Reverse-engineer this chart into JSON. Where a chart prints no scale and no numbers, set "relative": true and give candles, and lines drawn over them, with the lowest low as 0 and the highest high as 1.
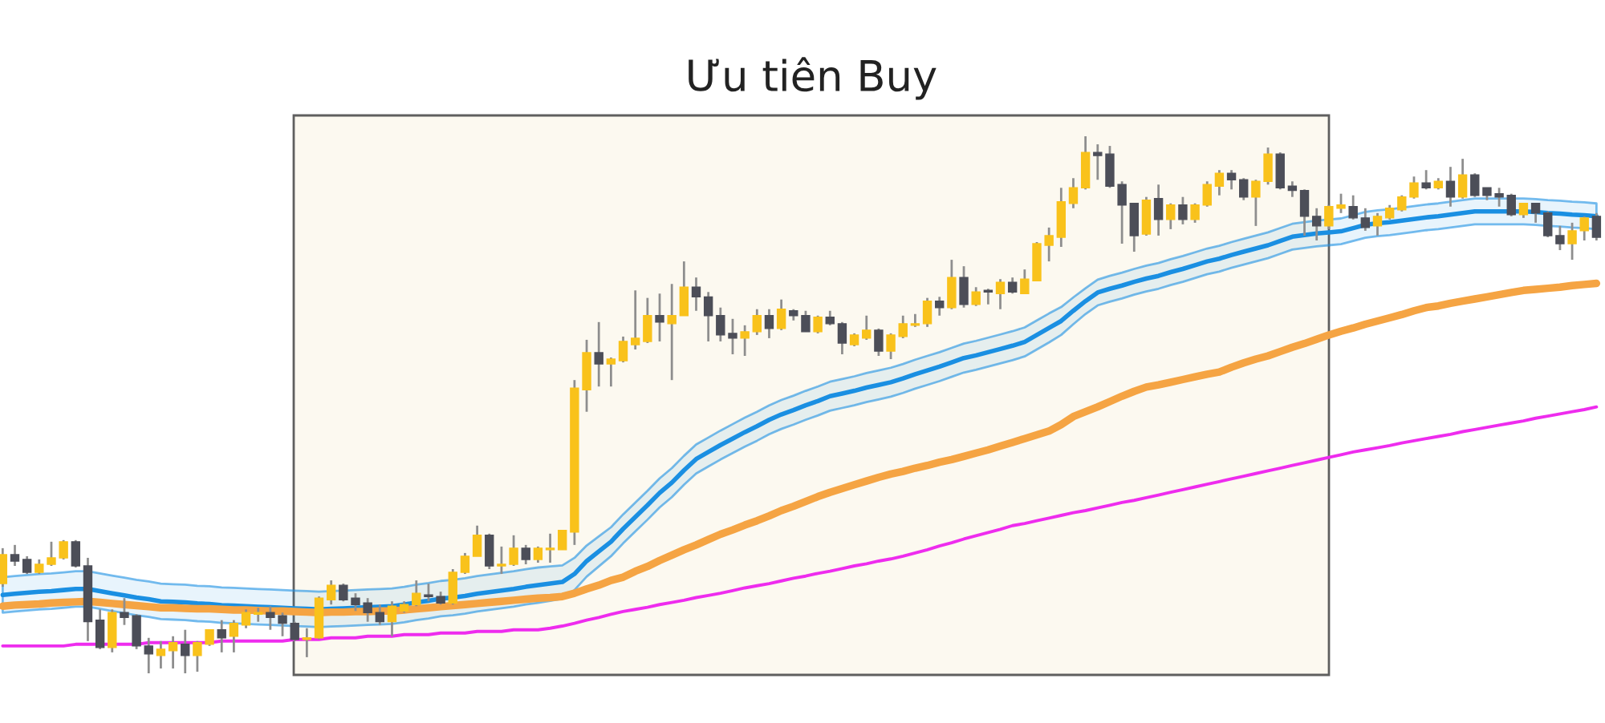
{
  "chart_data": {
    "type": "candlestick",
    "relative": true,
    "title": "Ưu tiên Buy",
    "categories": [
      null,
      null,
      null,
      null,
      null,
      null,
      null,
      null,
      null,
      null,
      null,
      null,
      null,
      null,
      null,
      null,
      null,
      null,
      null,
      null,
      null,
      null,
      null,
      null,
      null,
      null,
      null,
      null,
      null,
      null,
      null,
      null,
      null,
      null,
      null,
      null,
      null,
      null,
      null,
      null,
      null,
      null,
      null,
      null,
      null,
      null,
      null,
      null,
      null,
      null,
      null,
      null,
      null,
      null,
      null,
      null,
      null,
      null,
      null,
      null,
      null,
      null,
      null,
      null,
      null,
      null,
      null,
      null,
      null,
      null,
      null,
      null,
      null,
      null,
      null,
      null,
      null,
      null,
      null,
      null,
      null,
      null,
      null,
      null,
      null,
      null,
      null,
      null,
      null,
      null,
      null,
      null,
      null,
      null,
      null,
      null,
      null,
      null,
      null,
      null,
      null,
      null,
      null,
      null,
      null,
      null,
      null,
      null,
      null,
      null,
      null,
      null,
      null,
      null,
      null,
      null,
      null,
      null,
      null,
      null,
      null,
      null,
      null,
      null,
      null,
      null,
      null,
      null,
      null,
      null,
      null,
      null
    ],
    "ohlc": [
      [
        0.167,
        0.233,
        0.161,
        0.221
      ],
      [
        0.221,
        0.239,
        0.2,
        0.209
      ],
      [
        0.212,
        0.218,
        0.185,
        0.188
      ],
      [
        0.188,
        0.212,
        0.185,
        0.203
      ],
      [
        0.203,
        0.245,
        0.2,
        0.215
      ],
      [
        0.215,
        0.248,
        0.212,
        0.245
      ],
      [
        0.245,
        0.248,
        0.197,
        0.2
      ],
      [
        0.2,
        0.215,
        0.06,
        0.096
      ],
      [
        0.099,
        0.119,
        0.045,
        0.048
      ],
      [
        0.048,
        0.119,
        0.039,
        0.113
      ],
      [
        0.113,
        0.14,
        0.09,
        0.104
      ],
      [
        0.107,
        0.11,
        0.045,
        0.051
      ],
      [
        0.051,
        0.066,
        0,
        0.036
      ],
      [
        0.033,
        0.06,
        0.009,
        0.045
      ],
      [
        0.042,
        0.069,
        0.009,
        0.057
      ],
      [
        0.054,
        0.081,
        0,
        0.033
      ],
      [
        0.033,
        0.06,
        0.003,
        0.057
      ],
      [
        0.054,
        0.081,
        0.051,
        0.081
      ],
      [
        0.081,
        0.099,
        0.039,
        0.066
      ],
      [
        0.069,
        0.099,
        0.039,
        0.093
      ],
      [
        0.09,
        0.119,
        0.084,
        0.113
      ],
      [
        0.11,
        0.122,
        0.096,
        0.113
      ],
      [
        0.113,
        0.125,
        0.081,
        0.104
      ],
      [
        0.107,
        0.113,
        0.069,
        0.093
      ],
      [
        0.093,
        0.096,
        0.06,
        0.063
      ],
      [
        0.063,
        0.084,
        0.03,
        0.066
      ],
      [
        0.066,
        0.143,
        0.063,
        0.14
      ],
      [
        0.137,
        0.173,
        0.128,
        0.164
      ],
      [
        0.164,
        0.167,
        0.134,
        0.137
      ],
      [
        0.14,
        0.149,
        0.116,
        0.128
      ],
      [
        0.131,
        0.14,
        0.096,
        0.113
      ],
      [
        0.113,
        0.128,
        0.09,
        0.096
      ],
      [
        0.096,
        0.134,
        0.069,
        0.125
      ],
      [
        0.116,
        0.134,
        0.113,
        0.128
      ],
      [
        0.128,
        0.173,
        0.125,
        0.149
      ],
      [
        0.146,
        0.167,
        0.134,
        0.143
      ],
      [
        0.143,
        0.152,
        0.128,
        0.131
      ],
      [
        0.131,
        0.194,
        0.128,
        0.188
      ],
      [
        0.188,
        0.224,
        0.185,
        0.218
      ],
      [
        0.218,
        0.275,
        0.218,
        0.257
      ],
      [
        0.257,
        0.26,
        0.194,
        0.2
      ],
      [
        0.2,
        0.236,
        0.185,
        0.203
      ],
      [
        0.203,
        0.257,
        0.2,
        0.233
      ],
      [
        0.233,
        0.239,
        0.203,
        0.212
      ],
      [
        0.212,
        0.236,
        0.206,
        0.233
      ],
      [
        0.23,
        0.26,
        0.206,
        0.233
      ],
      [
        0.23,
        0.266,
        0.23,
        0.266
      ],
      [
        0.263,
        0.546,
        0.239,
        0.531
      ],
      [
        0.528,
        0.621,
        0.487,
        0.597
      ],
      [
        0.597,
        0.654,
        0.534,
        0.576
      ],
      [
        0.576,
        0.588,
        0.534,
        0.585
      ],
      [
        0.582,
        0.627,
        0.579,
        0.618
      ],
      [
        0.612,
        0.713,
        0.603,
        0.624
      ],
      [
        0.618,
        0.699,
        0.615,
        0.666
      ],
      [
        0.666,
        0.707,
        0.618,
        0.654
      ],
      [
        0.651,
        0.725,
        0.546,
        0.666
      ],
      [
        0.666,
        0.767,
        0.666,
        0.719
      ],
      [
        0.719,
        0.737,
        0.675,
        0.701
      ],
      [
        0.701,
        0.71,
        0.618,
        0.666
      ],
      [
        0.666,
        0.681,
        0.618,
        0.63
      ],
      [
        0.633,
        0.66,
        0.594,
        0.624
      ],
      [
        0.624,
        0.648,
        0.591,
        0.636
      ],
      [
        0.636,
        0.678,
        0.63,
        0.666
      ],
      [
        0.666,
        0.678,
        0.624,
        0.642
      ],
      [
        0.642,
        0.696,
        0.639,
        0.678
      ],
      [
        0.675,
        0.678,
        0.657,
        0.666
      ],
      [
        0.666,
        0.675,
        0.636,
        0.636
      ],
      [
        0.636,
        0.666,
        0.633,
        0.663
      ],
      [
        0.663,
        0.675,
        0.648,
        0.651
      ],
      [
        0.651,
        0.654,
        0.594,
        0.615
      ],
      [
        0.612,
        0.633,
        0.609,
        0.63
      ],
      [
        0.624,
        0.666,
        0.621,
        0.639
      ],
      [
        0.639,
        0.642,
        0.591,
        0.6
      ],
      [
        0.6,
        0.633,
        0.585,
        0.63
      ],
      [
        0.627,
        0.666,
        0.624,
        0.651
      ],
      [
        0.648,
        0.669,
        0.645,
        0.651
      ],
      [
        0.651,
        0.699,
        0.645,
        0.693
      ],
      [
        0.693,
        0.701,
        0.666,
        0.681
      ],
      [
        0.681,
        0.77,
        0.678,
        0.737
      ],
      [
        0.737,
        0.758,
        0.681,
        0.687
      ],
      [
        0.687,
        0.719,
        0.684,
        0.71
      ],
      [
        0.713,
        0.716,
        0.687,
        0.71
      ],
      [
        0.707,
        0.734,
        0.678,
        0.728
      ],
      [
        0.728,
        0.737,
        0.707,
        0.71
      ],
      [
        0.707,
        0.752,
        0.707,
        0.734
      ],
      [
        0.731,
        0.803,
        0.731,
        0.8
      ],
      [
        0.797,
        0.83,
        0.767,
        0.815
      ],
      [
        0.812,
        0.904,
        0.794,
        0.878
      ],
      [
        0.875,
        0.922,
        0.866,
        0.904
      ],
      [
        0.904,
        1,
        0.901,
        0.97
      ],
      [
        0.97,
        0.985,
        0.919,
        0.964
      ],
      [
        0.967,
        0.982,
        0.904,
        0.907
      ],
      [
        0.91,
        0.916,
        0.8,
        0.872
      ],
      [
        0.875,
        0.875,
        0.785,
        0.815
      ],
      [
        0.818,
        0.887,
        0.815,
        0.881
      ],
      [
        0.884,
        0.91,
        0.815,
        0.845
      ],
      [
        0.845,
        0.875,
        0.827,
        0.872
      ],
      [
        0.872,
        0.887,
        0.836,
        0.845
      ],
      [
        0.845,
        0.875,
        0.839,
        0.872
      ],
      [
        0.872,
        0.916,
        0.869,
        0.91
      ],
      [
        0.907,
        0.937,
        0.89,
        0.931
      ],
      [
        0.931,
        0.937,
        0.901,
        0.919
      ],
      [
        0.919,
        0.922,
        0.881,
        0.887
      ],
      [
        0.887,
        0.919,
        0.833,
        0.916
      ],
      [
        0.916,
        0.979,
        0.91,
        0.967
      ],
      [
        0.967,
        0.97,
        0.901,
        0.904
      ],
      [
        0.907,
        0.916,
        0.887,
        0.899
      ],
      [
        0.899,
        0.901,
        0.815,
        0.851
      ],
      [
        0.851,
        0.866,
        0.806,
        0.833
      ],
      [
        0.833,
        0.872,
        0.827,
        0.869
      ],
      [
        0.866,
        0.893,
        0.857,
        0.872
      ],
      [
        0.869,
        0.89,
        0.845,
        0.848
      ],
      [
        0.848,
        0.866,
        0.824,
        0.83
      ],
      [
        0.833,
        0.857,
        0.815,
        0.851
      ],
      [
        0.848,
        0.872,
        0.845,
        0.866
      ],
      [
        0.863,
        0.89,
        0.86,
        0.887
      ],
      [
        0.887,
        0.925,
        0.884,
        0.913
      ],
      [
        0.913,
        0.937,
        0.901,
        0.904
      ],
      [
        0.904,
        0.922,
        0.901,
        0.916
      ],
      [
        0.916,
        0.943,
        0.869,
        0.887
      ],
      [
        0.887,
        0.958,
        0.884,
        0.928
      ],
      [
        0.928,
        0.931,
        0.887,
        0.89
      ],
      [
        0.904,
        0.904,
        0.881,
        0.89
      ],
      [
        0.893,
        0.904,
        0.869,
        0.887
      ],
      [
        0.89,
        0.893,
        0.851,
        0.854
      ],
      [
        0.854,
        0.875,
        0.848,
        0.875
      ],
      [
        0.875,
        0.875,
        0.839,
        0.857
      ],
      [
        0.857,
        0.86,
        0.812,
        0.815
      ],
      [
        0.815,
        0.833,
        0.788,
        0.8
      ],
      [
        0.8,
        0.839,
        0.77,
        0.824
      ],
      [
        0.824,
        0.851,
        0.806,
        0.848
      ],
      [
        0.851,
        0.857,
        0.806,
        0.812
      ]
    ],
    "colors": [
      "#f9c21b",
      "#4c4e58",
      "#4c4e58",
      "#f9c21b",
      "#f9c21b",
      "#f9c21b",
      "#4c4e58",
      "#4c4e58",
      "#4c4e58",
      "#f9c21b",
      "#4c4e58",
      "#4c4e58",
      "#4c4e58",
      "#f9c21b",
      "#f9c21b",
      "#4c4e58",
      "#f9c21b",
      "#f9c21b",
      "#4c4e58",
      "#f9c21b",
      "#f9c21b",
      "#f9c21b",
      "#4c4e58",
      "#4c4e58",
      "#4c4e58",
      "#f9c21b",
      "#f9c21b",
      "#f9c21b",
      "#4c4e58",
      "#4c4e58",
      "#4c4e58",
      "#4c4e58",
      "#f9c21b",
      "#f9c21b",
      "#f9c21b",
      "#4c4e58",
      "#4c4e58",
      "#f9c21b",
      "#f9c21b",
      "#f9c21b",
      "#4c4e58",
      "#f9c21b",
      "#f9c21b",
      "#4c4e58",
      "#f9c21b",
      "#f9c21b",
      "#f9c21b",
      "#f9c21b",
      "#f9c21b",
      "#4c4e58",
      "#f9c21b",
      "#f9c21b",
      "#f9c21b",
      "#f9c21b",
      "#4c4e58",
      "#f9c21b",
      "#f9c21b",
      "#4c4e58",
      "#4c4e58",
      "#4c4e58",
      "#4c4e58",
      "#f9c21b",
      "#f9c21b",
      "#4c4e58",
      "#f9c21b",
      "#4c4e58",
      "#4c4e58",
      "#f9c21b",
      "#4c4e58",
      "#4c4e58",
      "#f9c21b",
      "#f9c21b",
      "#4c4e58",
      "#f9c21b",
      "#f9c21b",
      "#f9c21b",
      "#f9c21b",
      "#4c4e58",
      "#f9c21b",
      "#4c4e58",
      "#f9c21b",
      "#4c4e58",
      "#f9c21b",
      "#4c4e58",
      "#f9c21b",
      "#f9c21b",
      "#f9c21b",
      "#f9c21b",
      "#f9c21b",
      "#f9c21b",
      "#4c4e58",
      "#4c4e58",
      "#4c4e58",
      "#4c4e58",
      "#f9c21b",
      "#4c4e58",
      "#f9c21b",
      "#4c4e58",
      "#f9c21b",
      "#f9c21b",
      "#f9c21b",
      "#4c4e58",
      "#4c4e58",
      "#f9c21b",
      "#f9c21b",
      "#4c4e58",
      "#4c4e58",
      "#4c4e58",
      "#4c4e58",
      "#f9c21b",
      "#f9c21b",
      "#4c4e58",
      "#4c4e58",
      "#f9c21b",
      "#f9c21b",
      "#f9c21b",
      "#f9c21b",
      "#4c4e58",
      "#f9c21b",
      "#4c4e58",
      "#f9c21b",
      "#4c4e58",
      "#4c4e58",
      "#4c4e58",
      "#4c4e58",
      "#f9c21b",
      "#4c4e58",
      "#4c4e58",
      "#4c4e58",
      "#f9c21b",
      "#f9c21b",
      "#4c4e58"
    ],
    "series": [
      {
        "type": "line",
        "color": "#1a8fe2",
        "values": [
          0.146,
          0.148,
          0.15,
          0.152,
          0.153,
          0.155,
          0.157,
          0.157,
          0.153,
          0.149,
          0.145,
          0.141,
          0.138,
          0.134,
          0.133,
          0.132,
          0.13,
          0.129,
          0.127,
          0.126,
          0.125,
          0.124,
          0.123,
          0.122,
          0.121,
          0.12,
          0.119,
          0.12,
          0.121,
          0.122,
          0.123,
          0.124,
          0.125,
          0.128,
          0.132,
          0.135,
          0.139,
          0.141,
          0.144,
          0.148,
          0.151,
          0.154,
          0.157,
          0.161,
          0.164,
          0.167,
          0.17,
          0.185,
          0.209,
          0.227,
          0.245,
          0.269,
          0.291,
          0.313,
          0.336,
          0.355,
          0.378,
          0.399,
          0.412,
          0.425,
          0.437,
          0.449,
          0.46,
          0.472,
          0.482,
          0.49,
          0.499,
          0.507,
          0.516,
          0.521,
          0.526,
          0.532,
          0.537,
          0.542,
          0.549,
          0.557,
          0.564,
          0.571,
          0.579,
          0.587,
          0.592,
          0.598,
          0.604,
          0.61,
          0.617,
          0.63,
          0.643,
          0.656,
          0.675,
          0.693,
          0.709,
          0.716,
          0.722,
          0.729,
          0.735,
          0.74,
          0.747,
          0.753,
          0.76,
          0.767,
          0.772,
          0.779,
          0.785,
          0.791,
          0.797,
          0.805,
          0.813,
          0.816,
          0.819,
          0.821,
          0.823,
          0.829,
          0.835,
          0.838,
          0.84,
          0.843,
          0.846,
          0.849,
          0.851,
          0.854,
          0.857,
          0.86,
          0.86,
          0.86,
          0.86,
          0.86,
          0.859,
          0.857,
          0.856,
          0.854,
          0.853,
          0.851
        ],
        "upper": [
          0.179,
          0.181,
          0.183,
          0.185,
          0.186,
          0.188,
          0.19,
          0.19,
          0.186,
          0.182,
          0.178,
          0.174,
          0.171,
          0.167,
          0.166,
          0.165,
          0.163,
          0.162,
          0.16,
          0.159,
          0.158,
          0.157,
          0.156,
          0.155,
          0.154,
          0.153,
          0.152,
          0.153,
          0.154,
          0.155,
          0.156,
          0.157,
          0.158,
          0.161,
          0.165,
          0.168,
          0.172,
          0.174,
          0.177,
          0.181,
          0.184,
          0.187,
          0.19,
          0.194,
          0.197,
          0.199,
          0.201,
          0.215,
          0.238,
          0.255,
          0.272,
          0.296,
          0.318,
          0.34,
          0.363,
          0.382,
          0.405,
          0.426,
          0.439,
          0.452,
          0.464,
          0.476,
          0.487,
          0.499,
          0.509,
          0.517,
          0.526,
          0.534,
          0.543,
          0.548,
          0.553,
          0.559,
          0.564,
          0.569,
          0.576,
          0.584,
          0.591,
          0.598,
          0.606,
          0.614,
          0.619,
          0.625,
          0.631,
          0.637,
          0.644,
          0.657,
          0.67,
          0.682,
          0.7,
          0.717,
          0.733,
          0.74,
          0.746,
          0.753,
          0.759,
          0.764,
          0.771,
          0.777,
          0.784,
          0.791,
          0.796,
          0.803,
          0.809,
          0.815,
          0.821,
          0.829,
          0.837,
          0.84,
          0.843,
          0.845,
          0.847,
          0.853,
          0.859,
          0.862,
          0.864,
          0.867,
          0.87,
          0.873,
          0.875,
          0.878,
          0.881,
          0.884,
          0.884,
          0.884,
          0.884,
          0.884,
          0.883,
          0.881,
          0.88,
          0.878,
          0.877,
          0.875
        ],
        "lower": [
          0.113,
          0.115,
          0.117,
          0.119,
          0.12,
          0.122,
          0.124,
          0.124,
          0.12,
          0.116,
          0.112,
          0.108,
          0.105,
          0.101,
          0.1,
          0.099,
          0.097,
          0.096,
          0.094,
          0.093,
          0.092,
          0.091,
          0.09,
          0.089,
          0.088,
          0.087,
          0.086,
          0.087,
          0.088,
          0.089,
          0.09,
          0.091,
          0.092,
          0.095,
          0.099,
          0.102,
          0.106,
          0.108,
          0.111,
          0.115,
          0.118,
          0.121,
          0.124,
          0.128,
          0.131,
          0.135,
          0.139,
          0.155,
          0.18,
          0.199,
          0.218,
          0.242,
          0.264,
          0.286,
          0.309,
          0.328,
          0.351,
          0.372,
          0.385,
          0.398,
          0.41,
          0.422,
          0.433,
          0.445,
          0.455,
          0.463,
          0.472,
          0.48,
          0.489,
          0.494,
          0.499,
          0.505,
          0.51,
          0.515,
          0.522,
          0.53,
          0.537,
          0.544,
          0.552,
          0.56,
          0.565,
          0.571,
          0.577,
          0.583,
          0.59,
          0.603,
          0.616,
          0.63,
          0.65,
          0.669,
          0.685,
          0.692,
          0.698,
          0.705,
          0.711,
          0.716,
          0.723,
          0.729,
          0.736,
          0.743,
          0.748,
          0.755,
          0.761,
          0.767,
          0.773,
          0.781,
          0.789,
          0.792,
          0.795,
          0.797,
          0.799,
          0.805,
          0.811,
          0.814,
          0.816,
          0.819,
          0.822,
          0.825,
          0.827,
          0.83,
          0.833,
          0.836,
          0.836,
          0.836,
          0.836,
          0.836,
          0.835,
          0.833,
          0.832,
          0.83,
          0.829,
          0.827
        ]
      },
      {
        "type": "line",
        "color": "#f5a443",
        "values": [
          0.125,
          0.127,
          0.128,
          0.129,
          0.131,
          0.132,
          0.133,
          0.134,
          0.132,
          0.13,
          0.128,
          0.126,
          0.124,
          0.122,
          0.122,
          0.121,
          0.12,
          0.12,
          0.119,
          0.118,
          0.118,
          0.117,
          0.116,
          0.116,
          0.115,
          0.114,
          0.113,
          0.114,
          0.114,
          0.115,
          0.115,
          0.116,
          0.116,
          0.118,
          0.12,
          0.122,
          0.124,
          0.126,
          0.128,
          0.13,
          0.132,
          0.134,
          0.136,
          0.138,
          0.14,
          0.141,
          0.143,
          0.149,
          0.157,
          0.164,
          0.173,
          0.179,
          0.19,
          0.199,
          0.21,
          0.22,
          0.23,
          0.239,
          0.249,
          0.259,
          0.267,
          0.276,
          0.284,
          0.293,
          0.303,
          0.311,
          0.32,
          0.329,
          0.337,
          0.344,
          0.351,
          0.358,
          0.365,
          0.371,
          0.376,
          0.382,
          0.387,
          0.393,
          0.398,
          0.404,
          0.41,
          0.416,
          0.423,
          0.43,
          0.437,
          0.444,
          0.451,
          0.463,
          0.478,
          0.487,
          0.496,
          0.506,
          0.516,
          0.525,
          0.533,
          0.537,
          0.542,
          0.547,
          0.552,
          0.557,
          0.561,
          0.57,
          0.578,
          0.585,
          0.591,
          0.599,
          0.607,
          0.614,
          0.622,
          0.63,
          0.637,
          0.643,
          0.65,
          0.656,
          0.662,
          0.668,
          0.675,
          0.681,
          0.684,
          0.689,
          0.693,
          0.697,
          0.701,
          0.705,
          0.709,
          0.713,
          0.715,
          0.717,
          0.719,
          0.722,
          0.724,
          0.726
        ]
      },
      {
        "type": "line",
        "color": "#ee2cee",
        "values": [
          0.051,
          0.051,
          0.051,
          0.051,
          0.051,
          0.051,
          0.054,
          0.054,
          0.054,
          0.054,
          0.054,
          0.054,
          0.057,
          0.057,
          0.057,
          0.057,
          0.057,
          0.057,
          0.06,
          0.06,
          0.06,
          0.06,
          0.06,
          0.06,
          0.063,
          0.063,
          0.063,
          0.066,
          0.066,
          0.066,
          0.069,
          0.069,
          0.069,
          0.072,
          0.072,
          0.072,
          0.075,
          0.075,
          0.075,
          0.078,
          0.078,
          0.078,
          0.081,
          0.081,
          0.081,
          0.084,
          0.088,
          0.093,
          0.099,
          0.104,
          0.11,
          0.115,
          0.119,
          0.123,
          0.128,
          0.132,
          0.136,
          0.141,
          0.145,
          0.149,
          0.154,
          0.159,
          0.163,
          0.167,
          0.172,
          0.177,
          0.181,
          0.186,
          0.19,
          0.195,
          0.2,
          0.204,
          0.209,
          0.213,
          0.218,
          0.224,
          0.23,
          0.237,
          0.243,
          0.25,
          0.256,
          0.262,
          0.268,
          0.275,
          0.279,
          0.284,
          0.289,
          0.294,
          0.299,
          0.303,
          0.308,
          0.313,
          0.318,
          0.322,
          0.327,
          0.332,
          0.337,
          0.342,
          0.347,
          0.352,
          0.357,
          0.362,
          0.367,
          0.372,
          0.377,
          0.382,
          0.387,
          0.392,
          0.397,
          0.402,
          0.407,
          0.412,
          0.416,
          0.42,
          0.424,
          0.429,
          0.433,
          0.437,
          0.441,
          0.445,
          0.45,
          0.454,
          0.458,
          0.462,
          0.466,
          0.47,
          0.475,
          0.479,
          0.483,
          0.487,
          0.491,
          0.496
        ]
      }
    ]
  }
}
